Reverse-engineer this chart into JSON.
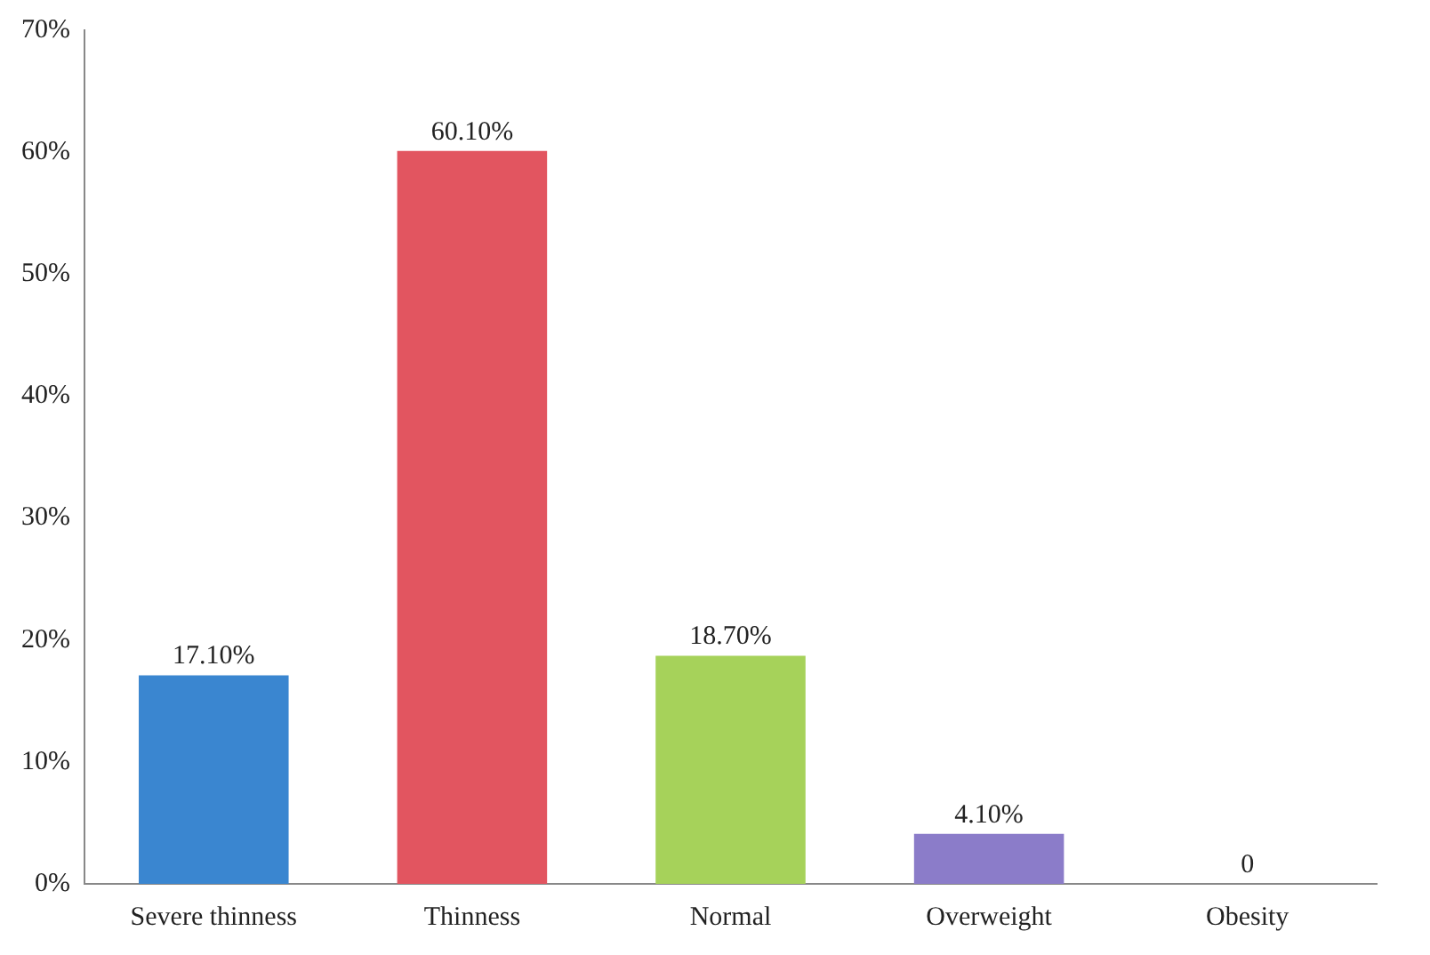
{
  "chart_data": {
    "type": "bar",
    "categories": [
      "Severe thinness",
      "Thinness",
      "Normal",
      "Overweight",
      "Obesity"
    ],
    "values": [
      17.1,
      60.1,
      18.7,
      4.1,
      0
    ],
    "value_labels": [
      "17.10%",
      "60.10%",
      "18.70%",
      "4.10%",
      "0"
    ],
    "colors": [
      "#3a86d0",
      "#e25560",
      "#a6d25a",
      "#8b7cc9",
      "#1d6b74"
    ],
    "ylim": [
      0,
      70
    ],
    "yticks": [
      {
        "value": 0,
        "label": "0%"
      },
      {
        "value": 10,
        "label": "10%"
      },
      {
        "value": 20,
        "label": "20%"
      },
      {
        "value": 30,
        "label": "30%"
      },
      {
        "value": 40,
        "label": "40%"
      },
      {
        "value": 50,
        "label": "50%"
      },
      {
        "value": 60,
        "label": "60%"
      },
      {
        "value": 70,
        "label": "70%"
      }
    ],
    "grid": false,
    "legend": false
  }
}
